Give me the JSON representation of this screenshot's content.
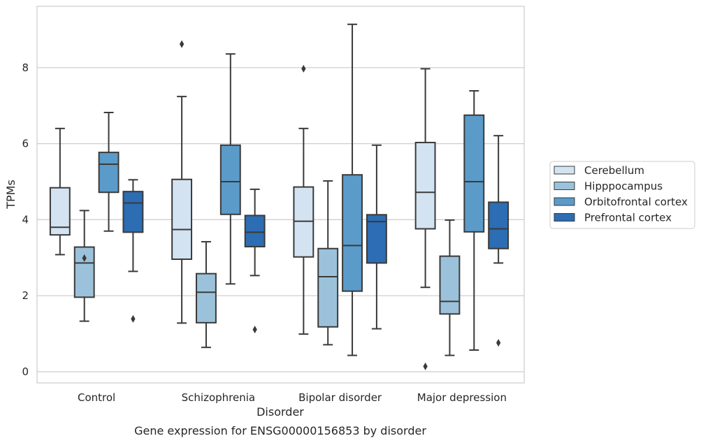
{
  "caption": "Gene expression for ENSG00000156853 by disorder",
  "chart_data": {
    "type": "box",
    "title": "",
    "xlabel": "Disorder",
    "ylabel": "TPMs",
    "categories": [
      "Control",
      "Schizophrenia",
      "Bipolar disorder",
      "Major depression"
    ],
    "yticks": [
      0,
      2,
      4,
      6,
      8
    ],
    "ylim": [
      -0.3,
      9.7
    ],
    "grid": "horizontal",
    "legend_position": "right",
    "series": [
      {
        "name": "Cerebellum",
        "color": "#d4e3f2",
        "boxes": [
          {
            "whisker_low": 3.08,
            "q1": 3.6,
            "median": 3.8,
            "q3": 4.84,
            "whisker_high": 6.4,
            "outliers": []
          },
          {
            "whisker_low": 1.28,
            "q1": 2.96,
            "median": 3.74,
            "q3": 5.06,
            "whisker_high": 7.24,
            "outliers": [
              8.62
            ]
          },
          {
            "whisker_low": 0.99,
            "q1": 3.02,
            "median": 3.96,
            "q3": 4.86,
            "whisker_high": 6.4,
            "outliers": [
              7.97
            ]
          },
          {
            "whisker_low": 2.22,
            "q1": 3.76,
            "median": 4.72,
            "q3": 6.03,
            "whisker_high": 7.97,
            "outliers": [
              0.14
            ]
          }
        ]
      },
      {
        "name": "Hipppocampus",
        "color": "#9bc2da",
        "boxes": [
          {
            "whisker_low": 1.33,
            "q1": 1.96,
            "median": 2.86,
            "q3": 3.28,
            "whisker_high": 4.24,
            "outliers": [
              2.99
            ]
          },
          {
            "whisker_low": 0.64,
            "q1": 1.29,
            "median": 2.09,
            "q3": 2.58,
            "whisker_high": 3.42,
            "outliers": []
          },
          {
            "whisker_low": 0.71,
            "q1": 1.18,
            "median": 2.5,
            "q3": 3.24,
            "whisker_high": 5.02,
            "outliers": []
          },
          {
            "whisker_low": 0.43,
            "q1": 1.52,
            "median": 1.85,
            "q3": 3.04,
            "whisker_high": 3.99,
            "outliers": []
          }
        ]
      },
      {
        "name": "Orbitofrontal cortex",
        "color": "#5b9bc9",
        "boxes": [
          {
            "whisker_low": 3.7,
            "q1": 4.72,
            "median": 5.46,
            "q3": 5.77,
            "whisker_high": 6.82,
            "outliers": []
          },
          {
            "whisker_low": 2.31,
            "q1": 4.14,
            "median": 5.0,
            "q3": 5.96,
            "whisker_high": 8.36,
            "outliers": []
          },
          {
            "whisker_low": 0.43,
            "q1": 2.12,
            "median": 3.32,
            "q3": 5.18,
            "whisker_high": 9.14,
            "outliers": []
          },
          {
            "whisker_low": 0.57,
            "q1": 3.68,
            "median": 5.0,
            "q3": 6.75,
            "whisker_high": 7.39,
            "outliers": []
          }
        ]
      },
      {
        "name": "Prefrontal cortex",
        "color": "#2c6db3",
        "boxes": [
          {
            "whisker_low": 2.64,
            "q1": 3.67,
            "median": 4.44,
            "q3": 4.74,
            "whisker_high": 5.05,
            "outliers": [
              1.39
            ]
          },
          {
            "whisker_low": 2.53,
            "q1": 3.29,
            "median": 3.67,
            "q3": 4.11,
            "whisker_high": 4.8,
            "outliers": [
              1.11
            ]
          },
          {
            "whisker_low": 1.13,
            "q1": 2.86,
            "median": 3.95,
            "q3": 4.13,
            "whisker_high": 5.96,
            "outliers": []
          },
          {
            "whisker_low": 2.86,
            "q1": 3.24,
            "median": 3.76,
            "q3": 4.46,
            "whisker_high": 6.21,
            "outliers": [
              0.76
            ]
          }
        ]
      }
    ]
  }
}
